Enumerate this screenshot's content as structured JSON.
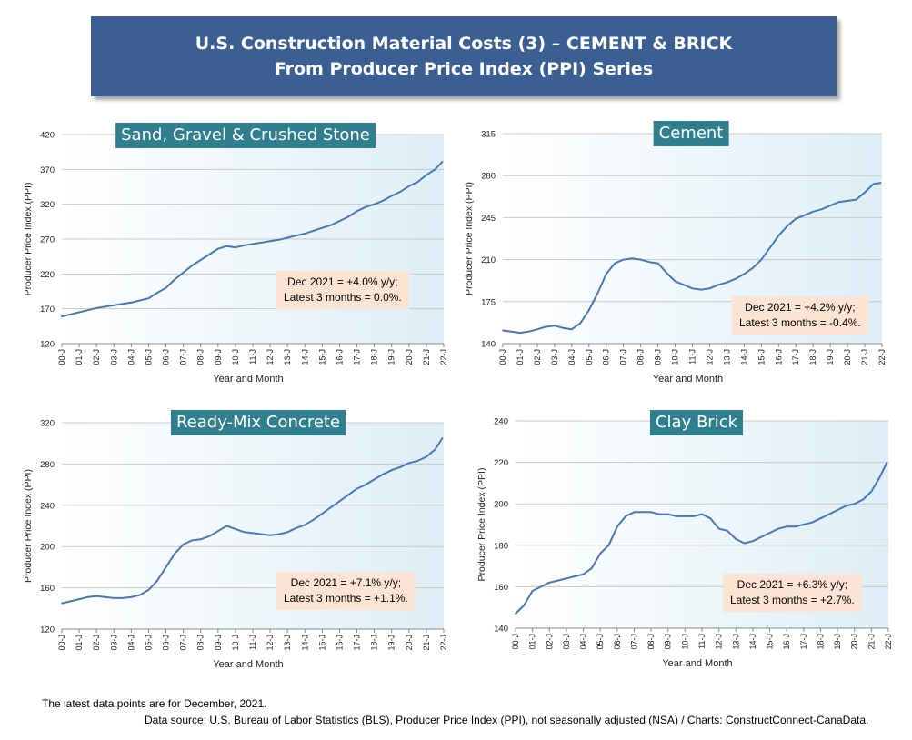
{
  "header": {
    "title_line1": "U.S. Construction Material Costs (3) – CEMENT & BRICK",
    "title_line2": "From Producer Price Index (PPI) Series"
  },
  "colors": {
    "banner": "#3b5f93",
    "chart_title_bg": "#2f7f8e",
    "line": "#4a78b4",
    "note_bg": "#fbe4d3"
  },
  "chart_data": [
    {
      "type": "line",
      "title": "Sand, Gravel & Crushed Stone",
      "xlabel": "Year and Month",
      "ylabel": "Producer Price Index (PPI)",
      "ylim": [
        120,
        420
      ],
      "yticks": [
        120,
        170,
        220,
        270,
        320,
        370,
        420
      ],
      "xticks": [
        "00-J",
        "01-J",
        "02-J",
        "03-J",
        "04-J",
        "05-J",
        "06-J",
        "07-J",
        "08-J",
        "09-J",
        "10-J",
        "11-J",
        "12-J",
        "13-J",
        "14-J",
        "15-J",
        "16-J",
        "17-J",
        "18-J",
        "19-J",
        "20-J",
        "21-J",
        "22-J"
      ],
      "x_start": 2000.0,
      "x_end": 2022.0,
      "grid": true,
      "annotation": [
        "Dec 2021 = +4.0% y/y;",
        "Latest 3 months = 0.0%."
      ],
      "series": [
        {
          "x": [
            2000.0,
            2000.5,
            2001.0,
            2001.5,
            2002.0,
            2002.5,
            2003.0,
            2003.5,
            2004.0,
            2004.5,
            2005.0,
            2005.5,
            2006.0,
            2006.5,
            2007.0,
            2007.5,
            2008.0,
            2008.5,
            2009.0,
            2009.5,
            2010.0,
            2010.5,
            2011.0,
            2011.5,
            2012.0,
            2012.5,
            2013.0,
            2013.5,
            2014.0,
            2014.5,
            2015.0,
            2015.5,
            2016.0,
            2016.5,
            2017.0,
            2017.5,
            2018.0,
            2018.5,
            2019.0,
            2019.5,
            2020.0,
            2020.5,
            2021.0,
            2021.5,
            2021.92
          ],
          "values": [
            159,
            162,
            165,
            168,
            171,
            173,
            175,
            177,
            179,
            182,
            185,
            193,
            200,
            212,
            222,
            232,
            240,
            248,
            256,
            260,
            258,
            261,
            263,
            265,
            267,
            269,
            272,
            275,
            278,
            282,
            286,
            290,
            296,
            302,
            310,
            316,
            320,
            325,
            332,
            338,
            346,
            352,
            362,
            370,
            381
          ]
        }
      ]
    },
    {
      "type": "line",
      "title": "Cement",
      "xlabel": "Year and Month",
      "ylabel": "Producer Price Index (PPI)",
      "ylim": [
        140,
        315
      ],
      "yticks": [
        140,
        175,
        210,
        245,
        280,
        315
      ],
      "xticks": [
        "00-J",
        "01-J",
        "02-J",
        "03-J",
        "04-J",
        "05-J",
        "06-J",
        "07-J",
        "08-J",
        "09-J",
        "10-J",
        "11-J",
        "12-J",
        "13-J",
        "14-J",
        "15-J",
        "16-J",
        "17-J",
        "18-J",
        "19-J",
        "20-J",
        "21-J",
        "22-J"
      ],
      "x_start": 2000.0,
      "x_end": 2022.0,
      "grid": true,
      "annotation": [
        "Dec 2021 = +4.2% y/y;",
        "Latest 3 months = -0.4%."
      ],
      "series": [
        {
          "x": [
            2000.0,
            2000.5,
            2001.0,
            2001.5,
            2002.0,
            2002.5,
            2003.0,
            2003.5,
            2004.0,
            2004.5,
            2005.0,
            2005.5,
            2006.0,
            2006.5,
            2007.0,
            2007.5,
            2008.0,
            2008.5,
            2009.0,
            2009.5,
            2010.0,
            2010.5,
            2011.0,
            2011.5,
            2012.0,
            2012.5,
            2013.0,
            2013.5,
            2014.0,
            2014.5,
            2015.0,
            2015.5,
            2016.0,
            2016.5,
            2017.0,
            2017.5,
            2018.0,
            2018.5,
            2019.0,
            2019.5,
            2020.0,
            2020.5,
            2021.0,
            2021.5,
            2021.92
          ],
          "values": [
            151,
            150,
            149,
            150,
            152,
            154,
            155,
            153,
            152,
            157,
            168,
            182,
            198,
            207,
            210,
            211,
            210,
            208,
            207,
            199,
            192,
            189,
            186,
            185,
            186,
            189,
            191,
            194,
            198,
            203,
            210,
            220,
            230,
            238,
            244,
            247,
            250,
            252,
            255,
            258,
            259,
            260,
            266,
            273,
            274
          ]
        }
      ]
    },
    {
      "type": "line",
      "title": "Ready-Mix Concrete",
      "xlabel": "Year and Month",
      "ylabel": "Producer Price Index (PPI)",
      "ylim": [
        120,
        320
      ],
      "yticks": [
        120,
        160,
        200,
        240,
        280,
        320
      ],
      "xticks": [
        "00-J",
        "01-J",
        "02-J",
        "03-J",
        "04-J",
        "05-J",
        "06-J",
        "07-J",
        "08-J",
        "09-J",
        "10-J",
        "11-J",
        "12-J",
        "13-J",
        "14-J",
        "15-J",
        "16-J",
        "17-J",
        "18-J",
        "19-J",
        "20-J",
        "21-J",
        "22-J"
      ],
      "x_start": 2000.0,
      "x_end": 2022.0,
      "grid": true,
      "annotation": [
        "Dec 2021 = +7.1% y/y;",
        "Latest 3 months = +1.1%."
      ],
      "series": [
        {
          "x": [
            2000.0,
            2000.5,
            2001.0,
            2001.5,
            2002.0,
            2002.5,
            2003.0,
            2003.5,
            2004.0,
            2004.5,
            2005.0,
            2005.5,
            2006.0,
            2006.5,
            2007.0,
            2007.5,
            2008.0,
            2008.5,
            2009.0,
            2009.5,
            2010.0,
            2010.5,
            2011.0,
            2011.5,
            2012.0,
            2012.5,
            2013.0,
            2013.5,
            2014.0,
            2014.5,
            2015.0,
            2015.5,
            2016.0,
            2016.5,
            2017.0,
            2017.5,
            2018.0,
            2018.5,
            2019.0,
            2019.5,
            2020.0,
            2020.5,
            2021.0,
            2021.5,
            2021.92
          ],
          "values": [
            145,
            147,
            149,
            151,
            152,
            151,
            150,
            150,
            151,
            153,
            158,
            167,
            180,
            193,
            202,
            206,
            207,
            210,
            215,
            220,
            217,
            214,
            213,
            212,
            211,
            212,
            214,
            218,
            221,
            226,
            232,
            238,
            244,
            250,
            256,
            260,
            265,
            270,
            274,
            277,
            281,
            283,
            287,
            294,
            305
          ]
        }
      ]
    },
    {
      "type": "line",
      "title": "Clay Brick",
      "xlabel": "Year and Month",
      "ylabel": "Producer Price Index (PPI)",
      "ylim": [
        140,
        240
      ],
      "yticks": [
        140,
        160,
        180,
        200,
        220,
        240
      ],
      "xticks": [
        "00-J",
        "01-J",
        "02-J",
        "03-J",
        "04-J",
        "05-J",
        "06-J",
        "07-J",
        "08-J",
        "09-J",
        "10-J",
        "11-J",
        "12-J",
        "13-J",
        "14-J",
        "15-J",
        "16-J",
        "17-J",
        "18-J",
        "19-J",
        "20-J",
        "21-J",
        "22-J"
      ],
      "x_start": 2000.0,
      "x_end": 2022.0,
      "grid": true,
      "annotation": [
        "Dec 2021 = +6.3% y/y;",
        "Latest 3 months = +2.7%."
      ],
      "series": [
        {
          "x": [
            2000.0,
            2000.5,
            2001.0,
            2001.5,
            2002.0,
            2002.5,
            2003.0,
            2003.5,
            2004.0,
            2004.5,
            2005.0,
            2005.5,
            2006.0,
            2006.5,
            2007.0,
            2007.5,
            2008.0,
            2008.5,
            2009.0,
            2009.5,
            2010.0,
            2010.5,
            2011.0,
            2011.5,
            2012.0,
            2012.5,
            2013.0,
            2013.5,
            2014.0,
            2014.5,
            2015.0,
            2015.5,
            2016.0,
            2016.5,
            2017.0,
            2017.5,
            2018.0,
            2018.5,
            2019.0,
            2019.5,
            2020.0,
            2020.5,
            2021.0,
            2021.5,
            2021.92
          ],
          "values": [
            147,
            151,
            158,
            160,
            162,
            163,
            164,
            165,
            166,
            169,
            176,
            180,
            189,
            194,
            196,
            196,
            196,
            195,
            195,
            194,
            194,
            194,
            195,
            193,
            188,
            187,
            183,
            181,
            182,
            184,
            186,
            188,
            189,
            189,
            190,
            191,
            193,
            195,
            197,
            199,
            200,
            202,
            206,
            213,
            220
          ]
        }
      ]
    }
  ],
  "footer": {
    "line1": "The latest data points are for December, 2021.",
    "line2": "Data source: U.S. Bureau of Labor Statistics (BLS), Producer Price Index (PPI), not seasonally adjusted (NSA) / Charts: ConstructConnect-CanaData."
  }
}
